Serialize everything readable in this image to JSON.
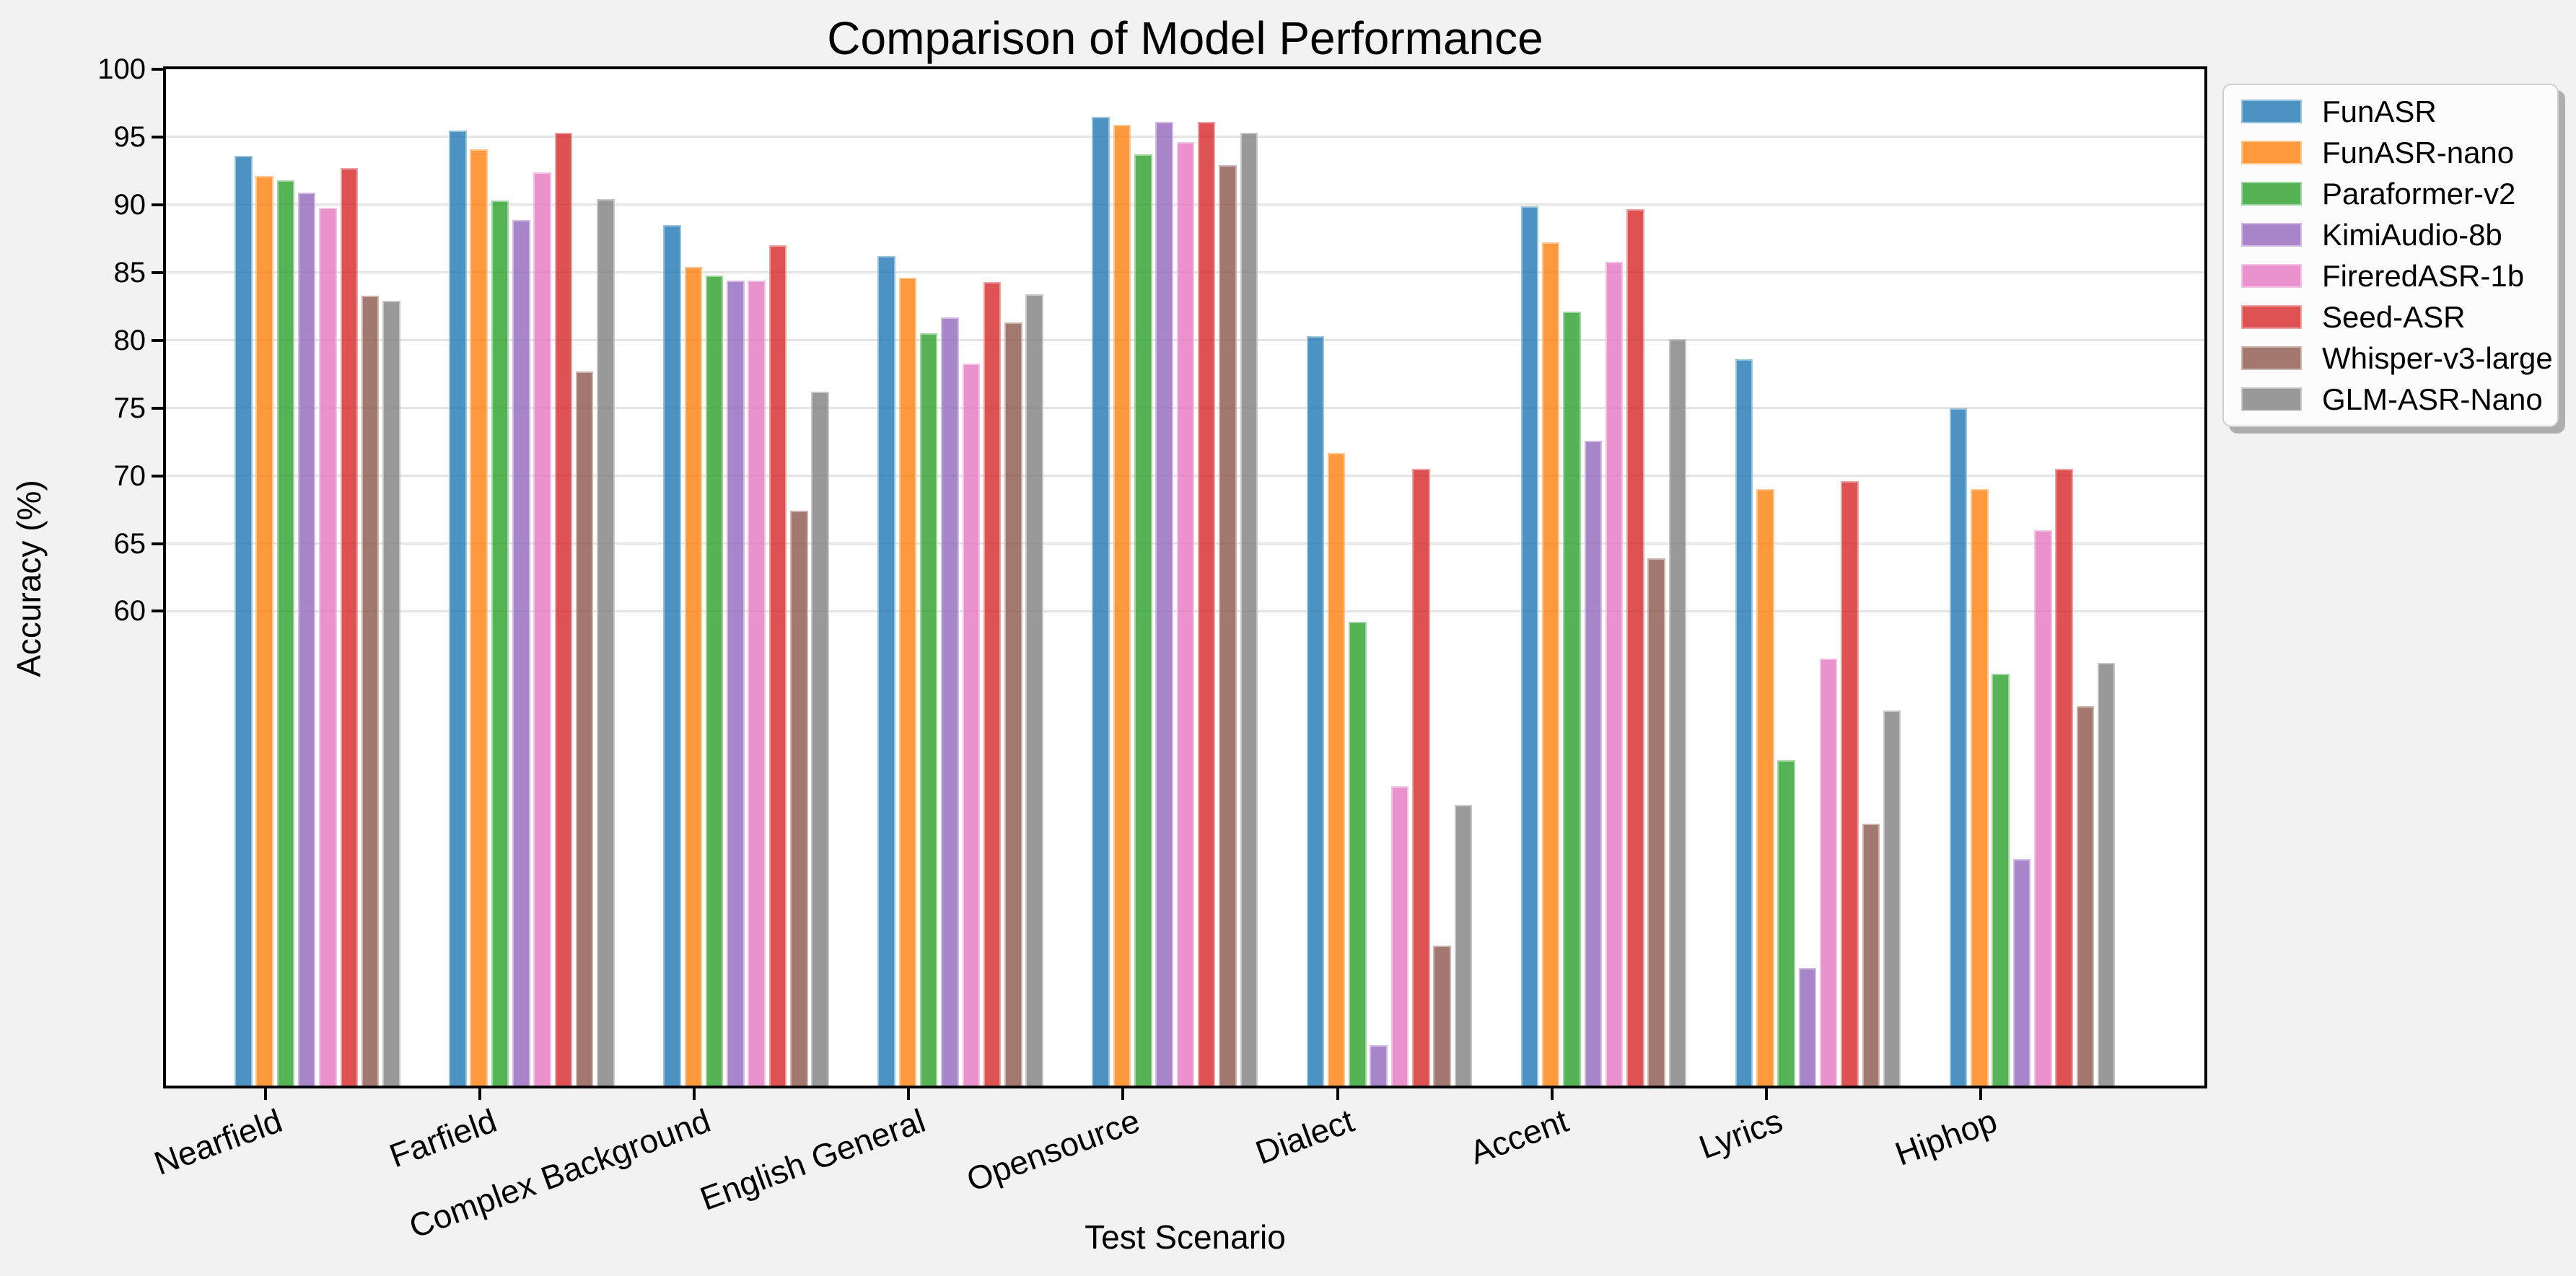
{
  "figure": {
    "background": "#f2f2f2",
    "axes_background": "#ffffff",
    "grid_color": "#e4e4e4",
    "spine_color": "#000000"
  },
  "chart_data": {
    "type": "bar",
    "title": "Comparison of Model Performance",
    "xlabel": "Test Scenario",
    "ylabel": "Accuracy (%)",
    "categories": [
      "Nearfield",
      "Farfield",
      "Complex Background",
      "English General",
      "Opensource",
      "Dialect",
      "Accent",
      "Lyrics",
      "Hiphop"
    ],
    "series": [
      {
        "name": "FunASR",
        "color": "#1f77b4",
        "values": [
          93.6,
          95.5,
          88.5,
          86.2,
          96.5,
          80.3,
          89.9,
          78.6,
          75.0
        ]
      },
      {
        "name": "FunASR-nano",
        "color": "#ff7f0e",
        "values": [
          92.1,
          94.1,
          85.4,
          84.6,
          95.9,
          71.7,
          87.2,
          69.0,
          69.0
        ]
      },
      {
        "name": "Paraformer-v2",
        "color": "#2ca02c",
        "values": [
          91.8,
          90.3,
          84.8,
          80.5,
          93.7,
          59.2,
          82.1,
          49.0,
          55.4
        ]
      },
      {
        "name": "KimiAudio-8b",
        "color": "#9467bd",
        "values": [
          90.9,
          88.9,
          84.4,
          81.7,
          96.1,
          28.0,
          72.6,
          33.7,
          41.7
        ]
      },
      {
        "name": "FireredASR-1b",
        "color": "#e377c2",
        "values": [
          89.8,
          92.4,
          84.4,
          78.3,
          94.6,
          47.1,
          85.8,
          56.5,
          66.0
        ]
      },
      {
        "name": "Seed-ASR",
        "color": "#d62728",
        "values": [
          92.7,
          95.3,
          87.0,
          84.3,
          96.1,
          70.5,
          89.7,
          69.6,
          70.5
        ]
      },
      {
        "name": "Whisper-v3-large",
        "color": "#8c564b",
        "values": [
          83.3,
          77.7,
          67.4,
          81.3,
          92.9,
          35.3,
          63.9,
          44.3,
          53.0
        ]
      },
      {
        "name": "GLM-ASR-Nano",
        "color": "#7f7f7f",
        "values": [
          82.9,
          90.4,
          76.2,
          83.4,
          95.3,
          45.7,
          80.1,
          52.7,
          56.2
        ]
      }
    ],
    "bar_alpha": 0.8,
    "ylim": [
      25,
      100
    ],
    "yticks": [
      100,
      95,
      90,
      85,
      80,
      75,
      70,
      65,
      60
    ],
    "grid": "horizontal",
    "legend_position": "outside upper right"
  }
}
